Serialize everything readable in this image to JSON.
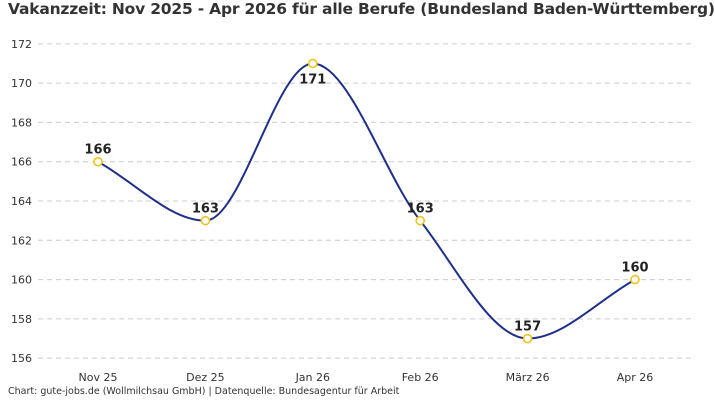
{
  "chart_data": {
    "type": "line",
    "title": "Vakanzzeit: Nov 2025 - Apr 2026 für alle Berufe (Bundesland Baden-Württemberg)",
    "xlabel": "",
    "ylabel": "",
    "categories": [
      "Nov 25",
      "Dez 25",
      "Jan 26",
      "Feb 26",
      "März 26",
      "Apr 26"
    ],
    "series": [
      {
        "values": [
          166,
          163,
          171,
          163,
          157,
          160
        ]
      }
    ],
    "data_labels": [
      "166",
      "163",
      "171",
      "163",
      "157",
      "160"
    ],
    "ylim": [
      155.5,
      172.5
    ],
    "yticks": [
      156,
      158,
      160,
      162,
      164,
      166,
      168,
      170,
      172
    ],
    "ytick_labels": [
      "156",
      "158",
      "160",
      "162",
      "164",
      "166",
      "168",
      "170",
      "172"
    ],
    "grid": "horizontal dashed",
    "smooth": true,
    "legend": "none",
    "colors": {
      "line": "#1f2f8a",
      "marker_stroke": "#f3c21b",
      "marker_fill": "#ffffff",
      "grid": "#cccccc"
    }
  },
  "footer": "Chart: gute-jobs.de (Wollmilchsau GmbH) | Datenquelle: Bundesagentur für Arbeit"
}
